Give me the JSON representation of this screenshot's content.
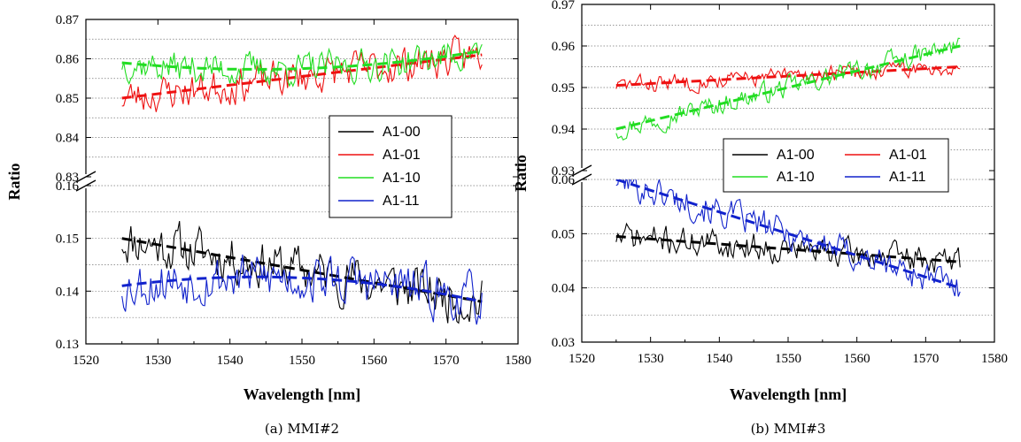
{
  "chart_data": [
    {
      "type": "line",
      "caption": "(a)  MMI#2",
      "xlabel": "Wavelength [nm]",
      "ylabel": "Ratio",
      "xlim": [
        1520,
        1580
      ],
      "xticks": [
        1520,
        1530,
        1540,
        1550,
        1560,
        1570,
        1580
      ],
      "broken_y_axis": true,
      "y_upper": {
        "range": [
          0.83,
          0.87
        ],
        "ticks": [
          0.83,
          0.84,
          0.85,
          0.86,
          0.87
        ]
      },
      "y_lower": {
        "range": [
          0.13,
          0.16
        ],
        "ticks": [
          0.13,
          0.14,
          0.15,
          0.16
        ]
      },
      "grid": "horizontal-dotted",
      "legend_position": "right-middle",
      "legend_columns": 1,
      "series": [
        {
          "name": "A1-00",
          "color": "#000000",
          "band": "lower",
          "fit": [
            0.15,
            0.138
          ],
          "noise": 0.0045,
          "seed": 11
        },
        {
          "name": "A1-01",
          "color": "#ee1111",
          "band": "upper",
          "fit": [
            0.85,
            0.861
          ],
          "noise": 0.0045,
          "seed": 23
        },
        {
          "name": "A1-10",
          "color": "#22dd22",
          "band": "upper",
          "fit": [
            0.859,
            0.862
          ],
          "noise": 0.004,
          "seed": 37,
          "fit_curve": [
            0.859,
            0.8545,
            0.862
          ]
        },
        {
          "name": "A1-11",
          "color": "#1122cc",
          "band": "lower",
          "fit": [
            0.141,
            0.138
          ],
          "noise": 0.0045,
          "seed": 53,
          "fit_curve": [
            0.141,
            0.1455,
            0.138
          ]
        }
      ],
      "x_data_range": [
        1525,
        1575
      ]
    },
    {
      "type": "line",
      "caption": "(b)  MMI#3",
      "xlabel": "Wavelength [nm]",
      "ylabel": "Ratio",
      "xlim": [
        1520,
        1580
      ],
      "xticks": [
        1520,
        1530,
        1540,
        1550,
        1560,
        1570,
        1580
      ],
      "broken_y_axis": true,
      "y_upper": {
        "range": [
          0.93,
          0.97
        ],
        "ticks": [
          0.93,
          0.94,
          0.95,
          0.96,
          0.97
        ]
      },
      "y_lower": {
        "range": [
          0.03,
          0.06
        ],
        "ticks": [
          0.03,
          0.04,
          0.05,
          0.06
        ]
      },
      "grid": "horizontal-dotted",
      "legend_position": "right-middle",
      "legend_columns": 2,
      "series": [
        {
          "name": "A1-00",
          "color": "#000000",
          "band": "lower",
          "fit": [
            0.0495,
            0.0448
          ],
          "noise": 0.0025,
          "seed": 71
        },
        {
          "name": "A1-01",
          "color": "#ee1111",
          "band": "upper",
          "fit": [
            0.9505,
            0.955
          ],
          "noise": 0.002,
          "seed": 83
        },
        {
          "name": "A1-10",
          "color": "#22dd22",
          "band": "upper",
          "fit": [
            0.94,
            0.96
          ],
          "noise": 0.0025,
          "seed": 97
        },
        {
          "name": "A1-11",
          "color": "#1122cc",
          "band": "lower",
          "fit": [
            0.06,
            0.04
          ],
          "noise": 0.0028,
          "seed": 101
        }
      ],
      "x_data_range": [
        1525,
        1575
      ]
    }
  ]
}
